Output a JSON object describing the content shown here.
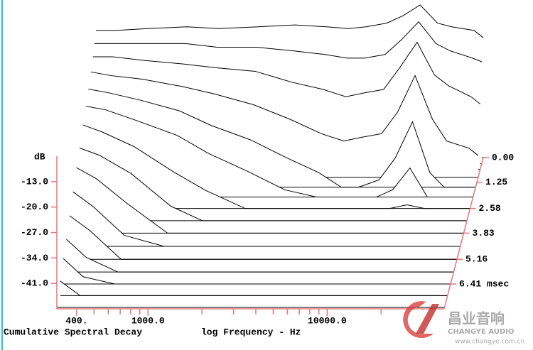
{
  "chart_data": {
    "type": "waterfall",
    "title": "Cumulative Spectral Decay",
    "xlabel": "log Frequency - Hz",
    "ylabel": "dB",
    "xscale": "log",
    "x": [
      310,
      400,
      600,
      1000,
      1500,
      2500,
      4000,
      6000,
      8000,
      10000,
      13000,
      16000,
      20000,
      25000,
      30000,
      40000,
      45000
    ],
    "xlim": [
      310,
      45000
    ],
    "xticks": [
      {
        "value": 400,
        "label": "400."
      },
      {
        "value": 1000,
        "label": "1000.0"
      },
      {
        "value": 10000,
        "label": "10000.0"
      }
    ],
    "xminorticks": [
      500,
      600,
      700,
      800,
      900,
      2000,
      3000,
      4000,
      5000,
      6000,
      7000,
      8000,
      9000,
      20000
    ],
    "ylim": [
      -48,
      -6
    ],
    "yticks": [
      {
        "value": -13,
        "label": "-13.0"
      },
      {
        "value": -20,
        "label": "-20.0"
      },
      {
        "value": -27,
        "label": "-27.0"
      },
      {
        "value": -34,
        "label": "-34.0"
      },
      {
        "value": -41,
        "label": "-41.0"
      }
    ],
    "zlim": [
      0,
      7.67
    ],
    "zticks": [
      {
        "value": 0,
        "label": "0.00"
      },
      1.25,
      2.58,
      3.83,
      5.16,
      {
        "value": 6.41,
        "label": "6.41 msec"
      }
    ],
    "axis_color": "#e8767a",
    "line_color": "#000000",
    "slices": [
      {
        "t": 0,
        "values": [
          -13,
          -13,
          -12.5,
          -12,
          -12.5,
          -12,
          -11.5,
          -12,
          -12.5,
          -12,
          -11,
          -9,
          -6,
          -11,
          -12,
          -13,
          -15
        ]
      },
      {
        "t": 0.3,
        "values": [
          -15,
          -15,
          -15,
          -15,
          -16,
          -16,
          -17,
          -18,
          -19,
          -19,
          -18,
          -14,
          -9,
          -15,
          -17,
          -19,
          -20
        ]
      },
      {
        "t": 0.6,
        "values": [
          -17,
          -17,
          -18,
          -19,
          -20,
          -21,
          -24,
          -26,
          -28,
          -27,
          -26,
          -20,
          -13,
          -22,
          -25,
          -28,
          -30
        ]
      },
      {
        "t": 1.0,
        "values": [
          -19,
          -20,
          -21,
          -23,
          -25,
          -28,
          -32,
          -36,
          -38,
          -37,
          -36,
          -30,
          -20,
          -32,
          -38,
          -40,
          -42
        ]
      },
      {
        "t": 1.5,
        "values": [
          -21,
          -22,
          -24,
          -27,
          -31,
          -35,
          -40,
          -44,
          -48,
          -48,
          -46,
          -40,
          -30,
          -44,
          -48,
          -48,
          -48
        ]
      },
      {
        "t": 2.0,
        "values": [
          -23,
          -24,
          -27,
          -31,
          -36,
          -41,
          -46,
          -48,
          -48,
          -48,
          -48,
          -46,
          -40,
          -48,
          -48,
          -48,
          -48
        ]
      },
      {
        "t": 2.58,
        "values": [
          -25,
          -27,
          -31,
          -38,
          -43,
          -48,
          -48,
          -48,
          -48,
          -48,
          -48,
          -48,
          -47,
          -48,
          -48,
          -48,
          -48
        ]
      },
      {
        "t": 3.2,
        "values": [
          -28,
          -30,
          -35,
          -44,
          -48,
          -48,
          -48,
          -48,
          -48,
          -48,
          -48,
          -48,
          -48,
          -48,
          -48,
          -48,
          -48
        ]
      },
      {
        "t": 3.83,
        "values": [
          -30,
          -33,
          -40,
          -48,
          -48,
          -48,
          -48,
          -48,
          -48,
          -48,
          -48,
          -48,
          -48,
          -48,
          -48,
          -48,
          -48
        ]
      },
      {
        "t": 4.5,
        "values": [
          -33,
          -37,
          -45,
          -48,
          -48,
          -48,
          -48,
          -48,
          -48,
          -48,
          -48,
          -48,
          -48,
          -48,
          -48,
          -48,
          -48
        ]
      },
      {
        "t": 5.16,
        "values": [
          -36,
          -40,
          -48,
          -48,
          -48,
          -48,
          -48,
          -48,
          -48,
          -48,
          -48,
          -48,
          -48,
          -48,
          -48,
          -48,
          -48
        ]
      },
      {
        "t": 5.8,
        "values": [
          -39,
          -44,
          -48,
          -48,
          -48,
          -48,
          -48,
          -48,
          -48,
          -48,
          -48,
          -48,
          -48,
          -48,
          -48,
          -48,
          -48
        ]
      },
      {
        "t": 6.41,
        "values": [
          -41,
          -46,
          -48,
          -48,
          -48,
          -48,
          -48,
          -48,
          -48,
          -48,
          -48,
          -48,
          -48,
          -48,
          -48,
          -48,
          -48
        ]
      },
      {
        "t": 7.0,
        "values": [
          -44,
          -48,
          -48,
          -48,
          -48,
          -48,
          -48,
          -48,
          -48,
          -48,
          -48,
          -48,
          -48,
          -48,
          -48,
          -48,
          -48
        ]
      },
      {
        "t": 7.6,
        "values": [
          -48,
          -48,
          -48,
          -48,
          -48,
          -48,
          -48,
          -48,
          -48,
          -48,
          -48,
          -48,
          -48,
          -48,
          -48,
          -48,
          -48
        ]
      }
    ],
    "watermark": {
      "brand": "昌业音响",
      "subtitle": "CHANGYE AUDIO",
      "url": "www.changye.com.cn"
    }
  }
}
